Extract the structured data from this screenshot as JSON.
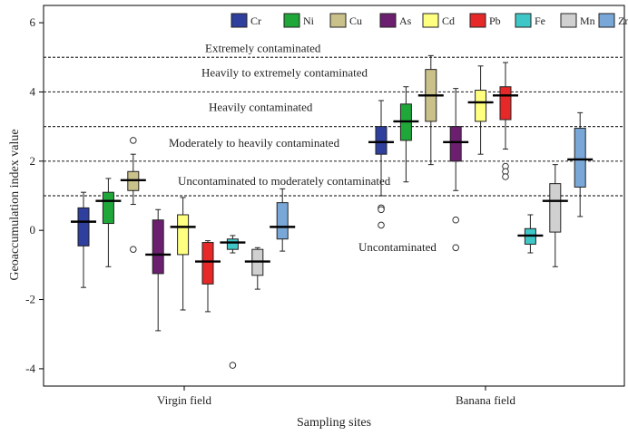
{
  "chart_data": {
    "type": "boxplot",
    "xlabel": "Sampling sites",
    "ylabel": "Geoaccumulation index value",
    "ylim": [
      -4.5,
      6.5
    ],
    "yticks": [
      -4,
      -2,
      0,
      2,
      4,
      6
    ],
    "categories": [
      "Virgin field",
      "Banana field"
    ],
    "thresholds": [
      {
        "value": 5,
        "label": "Extremely contaminated"
      },
      {
        "value": 4,
        "label": "Heavily to extremely contaminated"
      },
      {
        "value": 3,
        "label": "Heavily contaminated"
      },
      {
        "value": 2,
        "label": "Moderately to heavily contaminated"
      },
      {
        "value": 1,
        "label": "Uncontaminated to moderately contaminated"
      },
      {
        "value": 0,
        "label": "Uncontaminated"
      }
    ],
    "series": [
      {
        "name": "Cr",
        "color": "#2e3f9e",
        "boxes": [
          {
            "min": -1.65,
            "q1": -0.45,
            "median": 0.25,
            "q3": 0.65,
            "max": 1.1,
            "outliers": []
          },
          {
            "min": 1.0,
            "q1": 2.2,
            "median": 2.55,
            "q3": 3.0,
            "max": 3.75,
            "outliers": [
              0.65,
              0.6,
              0.15
            ]
          }
        ]
      },
      {
        "name": "Ni",
        "color": "#1fa73a",
        "boxes": [
          {
            "min": -1.05,
            "q1": 0.2,
            "median": 0.85,
            "q3": 1.1,
            "max": 1.5,
            "outliers": []
          },
          {
            "min": 1.4,
            "q1": 2.6,
            "median": 3.15,
            "q3": 3.65,
            "max": 4.15,
            "outliers": []
          }
        ]
      },
      {
        "name": "Cu",
        "color": "#c9c08a",
        "boxes": [
          {
            "min": 0.75,
            "q1": 1.15,
            "median": 1.45,
            "q3": 1.7,
            "max": 2.2,
            "outliers": [
              2.6,
              -0.55
            ]
          },
          {
            "min": 1.9,
            "q1": 3.15,
            "median": 3.9,
            "q3": 4.65,
            "max": 5.05,
            "outliers": []
          }
        ]
      },
      {
        "name": "As",
        "color": "#6b1f6e",
        "boxes": [
          {
            "min": -2.9,
            "q1": -1.25,
            "median": -0.7,
            "q3": 0.3,
            "max": 0.6,
            "outliers": []
          },
          {
            "min": 1.15,
            "q1": 2.0,
            "median": 2.55,
            "q3": 3.0,
            "max": 4.1,
            "outliers": [
              0.3,
              -0.5
            ]
          }
        ]
      },
      {
        "name": "Cd",
        "color": "#ffff80",
        "boxes": [
          {
            "min": -2.3,
            "q1": -0.7,
            "median": 0.1,
            "q3": 0.45,
            "max": 0.95,
            "outliers": []
          },
          {
            "min": 2.2,
            "q1": 3.15,
            "median": 3.7,
            "q3": 4.05,
            "max": 4.75,
            "outliers": []
          }
        ]
      },
      {
        "name": "Pb",
        "color": "#e62828",
        "boxes": [
          {
            "min": -2.35,
            "q1": -1.55,
            "median": -0.9,
            "q3": -0.35,
            "max": -0.3,
            "outliers": []
          },
          {
            "min": 2.35,
            "q1": 3.2,
            "median": 3.9,
            "q3": 4.15,
            "max": 4.85,
            "outliers": [
              1.85,
              1.7,
              1.55
            ]
          }
        ]
      },
      {
        "name": "Fe",
        "color": "#3fc7c7",
        "boxes": [
          {
            "min": -0.65,
            "q1": -0.55,
            "median": -0.35,
            "q3": -0.25,
            "max": -0.15,
            "outliers": [
              -3.9
            ]
          },
          {
            "min": -0.65,
            "q1": -0.4,
            "median": -0.15,
            "q3": 0.05,
            "max": 0.45,
            "outliers": []
          }
        ]
      },
      {
        "name": "Mn",
        "color": "#d0d0d0",
        "boxes": [
          {
            "min": -1.7,
            "q1": -1.3,
            "median": -0.9,
            "q3": -0.55,
            "max": -0.5,
            "outliers": []
          },
          {
            "min": -1.05,
            "q1": -0.05,
            "median": 0.85,
            "q3": 1.35,
            "max": 1.9,
            "outliers": []
          }
        ]
      },
      {
        "name": "Zn",
        "color": "#79a8d8",
        "boxes": [
          {
            "min": -0.6,
            "q1": -0.25,
            "median": 0.1,
            "q3": 0.8,
            "max": 1.2,
            "outliers": []
          },
          {
            "min": 0.4,
            "q1": 1.25,
            "median": 2.05,
            "q3": 2.95,
            "max": 3.4,
            "outliers": []
          }
        ]
      }
    ]
  }
}
